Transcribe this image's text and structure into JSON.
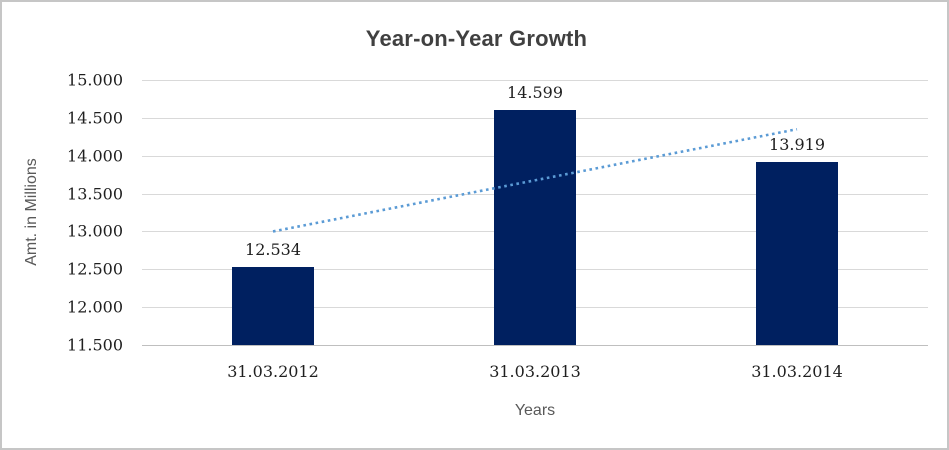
{
  "title": "Year-on-Year Growth",
  "colors": {
    "bar": "#002060",
    "trendline": "#5B9BD5",
    "gridline": "#d9d9d9",
    "axis_line": "#bfbfbf",
    "title_text": "#404040",
    "tick_text": "#1f1f1f",
    "axis_title_text": "#595959",
    "frame_border": "#c6c6c6"
  },
  "chart_data": {
    "type": "bar",
    "title": "Year-on-Year Growth",
    "categories": [
      "31.03.2012",
      "31.03.2013",
      "31.03.2014"
    ],
    "values": [
      12.534,
      14.599,
      13.919
    ],
    "value_labels": [
      "12.534",
      "14.599",
      "13.919"
    ],
    "xlabel": "Years",
    "ylabel": "Amt. in Millions",
    "ylim": [
      11.5,
      15.0
    ],
    "ytick_step": 0.5,
    "yticks": [
      15.0,
      14.5,
      14.0,
      13.5,
      13.0,
      12.5,
      12.0,
      11.5
    ],
    "ytick_labels": [
      "15.000",
      "14.500",
      "14.000",
      "13.500",
      "13.000",
      "12.500",
      "12.000",
      "11.500"
    ],
    "grid": true,
    "legend": "none",
    "trendline": {
      "style": "dotted",
      "start": {
        "category_index": 0,
        "value": 13.0
      },
      "end": {
        "category_index": 2,
        "value": 14.35
      }
    }
  }
}
